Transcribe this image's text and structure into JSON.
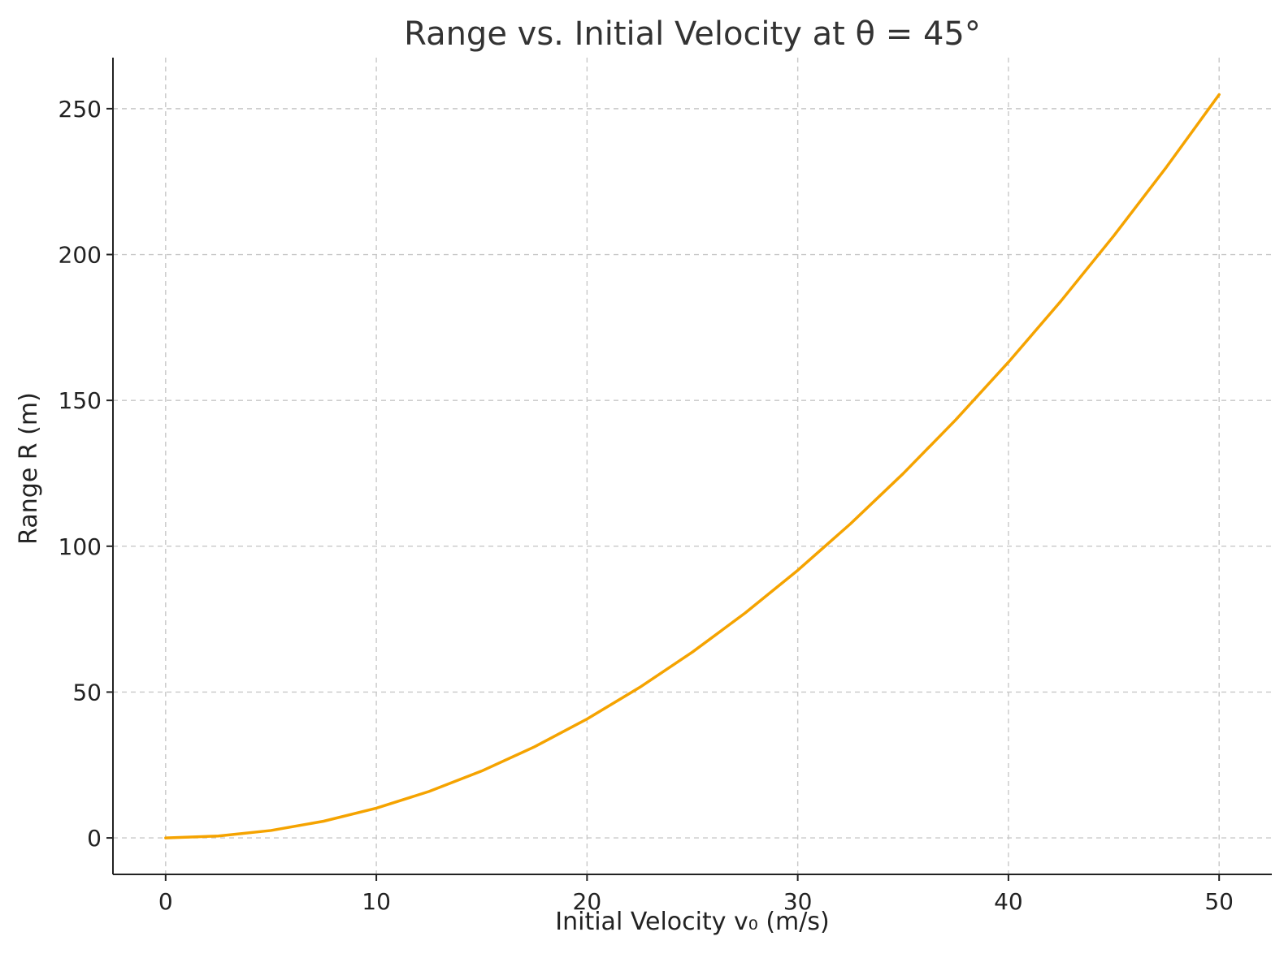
{
  "chart_data": {
    "type": "line",
    "title": "Range vs. Initial Velocity at θ = 45°",
    "xlabel": "Initial Velocity v₀ (m/s)",
    "ylabel": "Range R (m)",
    "xlim": [
      -2.5,
      52.5
    ],
    "ylim": [
      -12.5,
      267.5
    ],
    "xticks": [
      0,
      10,
      20,
      30,
      40,
      50
    ],
    "yticks": [
      0,
      50,
      100,
      150,
      200,
      250
    ],
    "grid": true,
    "series": [
      {
        "color": "#f5a300",
        "x": [
          0,
          2.5,
          5,
          7.5,
          10,
          12.5,
          15,
          17.5,
          20,
          22.5,
          25,
          27.5,
          30,
          32.5,
          35,
          37.5,
          40,
          42.5,
          45,
          47.5,
          50
        ],
        "y": [
          0,
          0.64,
          2.55,
          5.73,
          10.19,
          15.93,
          22.94,
          31.22,
          40.77,
          51.61,
          63.71,
          77.09,
          91.74,
          107.67,
          124.87,
          143.35,
          163.1,
          184.12,
          206.42,
          229.99,
          254.84
        ]
      }
    ]
  }
}
